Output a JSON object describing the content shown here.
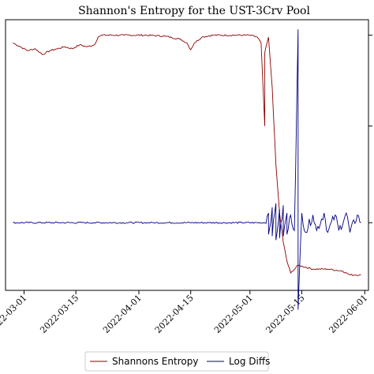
{
  "chart_data": {
    "type": "line",
    "title": "Shannon's Entropy for the UST-3Crv Pool",
    "xlabel": "",
    "ylabel": "",
    "x_ticks": [
      "2022-03-01",
      "2022-03-15",
      "2022-04-01",
      "2022-04-15",
      "2022-05-01",
      "2022-05-15",
      "2022-06-01"
    ],
    "legend_placement": "bottom-center",
    "grid": false,
    "series": [
      {
        "name": "Shannons Entropy",
        "color": "#8b0000",
        "points": [
          [
            "2022-02-26",
            0.93
          ],
          [
            "2022-02-28",
            0.91
          ],
          [
            "2022-03-02",
            0.89
          ],
          [
            "2022-03-04",
            0.9
          ],
          [
            "2022-03-06",
            0.87
          ],
          [
            "2022-03-08",
            0.89
          ],
          [
            "2022-03-10",
            0.9
          ],
          [
            "2022-03-12",
            0.91
          ],
          [
            "2022-03-14",
            0.9
          ],
          [
            "2022-03-16",
            0.92
          ],
          [
            "2022-03-18",
            0.91
          ],
          [
            "2022-03-20",
            0.92
          ],
          [
            "2022-03-21",
            0.96
          ],
          [
            "2022-03-22",
            0.97
          ],
          [
            "2022-03-28",
            0.97
          ],
          [
            "2022-04-03",
            0.97
          ],
          [
            "2022-04-08",
            0.965
          ],
          [
            "2022-04-12",
            0.95
          ],
          [
            "2022-04-14",
            0.93
          ],
          [
            "2022-04-15",
            0.895
          ],
          [
            "2022-04-16",
            0.93
          ],
          [
            "2022-04-18",
            0.96
          ],
          [
            "2022-04-21",
            0.97
          ],
          [
            "2022-04-27",
            0.97
          ],
          [
            "2022-05-01",
            0.97
          ],
          [
            "2022-05-03",
            0.96
          ],
          [
            "2022-05-04",
            0.93
          ],
          [
            "2022-05-05",
            0.5
          ],
          [
            "2022-05-05",
            0.88
          ],
          [
            "2022-05-06",
            0.96
          ],
          [
            "2022-05-07",
            0.7
          ],
          [
            "2022-05-08",
            0.3
          ],
          [
            "2022-05-09",
            0.05
          ],
          [
            "2022-05-10",
            -0.1
          ],
          [
            "2022-05-11",
            -0.2
          ],
          [
            "2022-05-12",
            -0.26
          ],
          [
            "2022-05-14",
            -0.22
          ],
          [
            "2022-05-18",
            -0.24
          ],
          [
            "2022-05-22",
            -0.24
          ],
          [
            "2022-05-26",
            -0.25
          ],
          [
            "2022-05-28",
            -0.27
          ],
          [
            "2022-05-31",
            -0.27
          ]
        ]
      },
      {
        "name": "Log Diffs",
        "color": "#00007f",
        "points": [
          [
            "2022-02-26",
            0.0
          ],
          [
            "2022-03-10",
            0.0
          ],
          [
            "2022-03-20",
            0.0
          ],
          [
            "2022-04-05",
            0.0
          ],
          [
            "2022-04-20",
            0.0
          ],
          [
            "2022-05-05",
            0.0
          ],
          [
            "2022-05-06",
            0.05
          ],
          [
            "2022-05-06",
            -0.06
          ],
          [
            "2022-05-07",
            0.08
          ],
          [
            "2022-05-07",
            -0.07
          ],
          [
            "2022-05-08",
            0.1
          ],
          [
            "2022-05-08",
            -0.09
          ],
          [
            "2022-05-09",
            0.07
          ],
          [
            "2022-05-09",
            -0.08
          ],
          [
            "2022-05-10",
            0.09
          ],
          [
            "2022-05-10",
            -0.07
          ],
          [
            "2022-05-11",
            0.05
          ],
          [
            "2022-05-11",
            -0.06
          ],
          [
            "2022-05-12",
            0.04
          ],
          [
            "2022-05-13",
            -0.04
          ],
          [
            "2022-05-14",
            1.0
          ],
          [
            "2022-05-14",
            -0.45
          ],
          [
            "2022-05-15",
            0.05
          ],
          [
            "2022-05-16",
            -0.05
          ],
          [
            "2022-05-18",
            0.04
          ],
          [
            "2022-05-19",
            -0.04
          ],
          [
            "2022-05-21",
            0.05
          ],
          [
            "2022-05-22",
            -0.05
          ],
          [
            "2022-05-24",
            0.04
          ],
          [
            "2022-05-25",
            -0.04
          ],
          [
            "2022-05-27",
            0.05
          ],
          [
            "2022-05-28",
            -0.05
          ],
          [
            "2022-05-30",
            0.04
          ],
          [
            "2022-05-31",
            0.0
          ]
        ]
      }
    ],
    "x_range": [
      "2022-02-24",
      "2022-06-02"
    ],
    "y_range": [
      -0.35,
      1.05
    ]
  }
}
